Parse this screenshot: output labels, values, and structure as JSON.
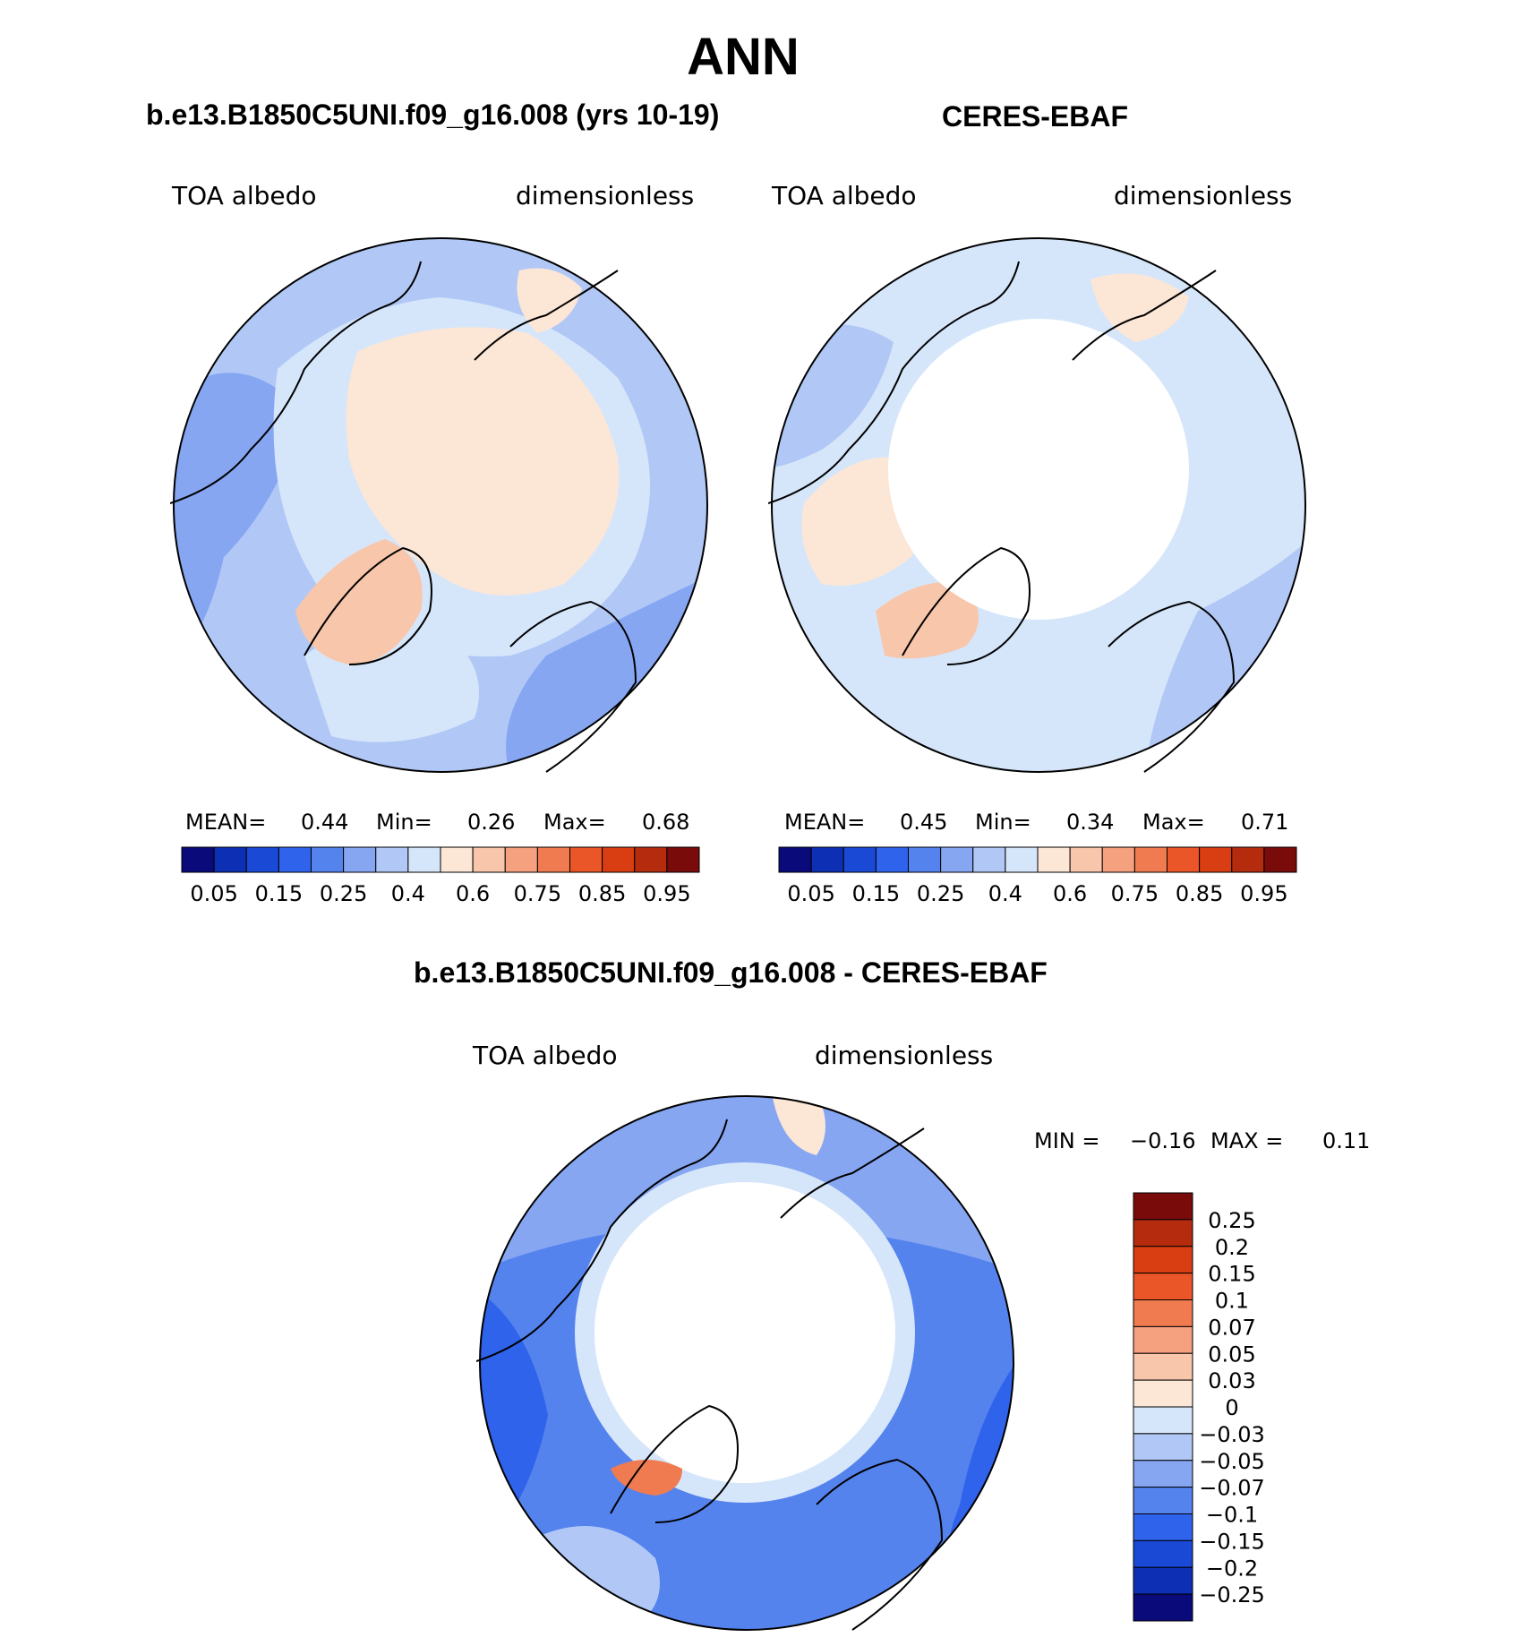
{
  "figure": {
    "title": "ANN",
    "colors": {
      "abs_levels": [
        "#0a0a7a",
        "#0c2fb4",
        "#1a49d6",
        "#2f63eb",
        "#5583ee",
        "#86a6f2",
        "#b1c8f6",
        "#d6e6fa",
        "#fce6d6",
        "#f8c6aa",
        "#f5a07e",
        "#f07b50",
        "#ea5628",
        "#d93d12",
        "#b42b0e",
        "#7a0b0b"
      ],
      "diff_levels": [
        "#0a0a7a",
        "#0c2fb4",
        "#1a49d6",
        "#2f63eb",
        "#5583ee",
        "#86a6f2",
        "#b1c8f6",
        "#d6e6fa",
        "#fce6d6",
        "#f8c6aa",
        "#f5a07e",
        "#f07b50",
        "#ea5628",
        "#d93d12",
        "#b42b0e",
        "#7a0b0b"
      ],
      "coast": "#000000",
      "mask": "#ffffff"
    }
  },
  "chart_data": [
    {
      "type": "heatmap",
      "projection": "north-polar-stereographic",
      "title": "b.e13.B1850C5UNI.f09_g16.008 (yrs 10-19)",
      "variable": "TOA albedo",
      "units": "dimensionless",
      "stats": {
        "mean_label": "MEAN=",
        "mean": "0.44",
        "min_label": "Min=",
        "min": "0.26",
        "max_label": "Max=",
        "max": "0.68"
      },
      "colorbar": {
        "orientation": "horizontal",
        "tick_labels": [
          "0.05",
          "0.15",
          "0.25",
          "0.4",
          "0.6",
          "0.75",
          "0.85",
          "0.95"
        ]
      }
    },
    {
      "type": "heatmap",
      "projection": "north-polar-stereographic",
      "title": "CERES-EBAF",
      "variable": "TOA albedo",
      "units": "dimensionless",
      "stats": {
        "mean_label": "MEAN=",
        "mean": "0.45",
        "min_label": "Min=",
        "min": "0.34",
        "max_label": "Max=",
        "max": "0.71"
      },
      "colorbar": {
        "orientation": "horizontal",
        "tick_labels": [
          "0.05",
          "0.15",
          "0.25",
          "0.4",
          "0.6",
          "0.75",
          "0.85",
          "0.95"
        ]
      }
    },
    {
      "type": "heatmap",
      "projection": "north-polar-stereographic",
      "title": "b.e13.B1850C5UNI.f09_g16.008 - CERES-EBAF",
      "variable": "TOA albedo",
      "units": "dimensionless",
      "stats": {
        "min_label": "MIN =",
        "min": "−0.16",
        "max_label": "MAX =",
        "max": "0.11"
      },
      "colorbar": {
        "orientation": "vertical",
        "tick_labels": [
          "0.25",
          "0.2",
          "0.15",
          "0.1",
          "0.07",
          "0.05",
          "0.03",
          "0",
          "−0.03",
          "−0.05",
          "−0.07",
          "−0.1",
          "−0.15",
          "−0.2",
          "−0.25"
        ]
      }
    }
  ]
}
